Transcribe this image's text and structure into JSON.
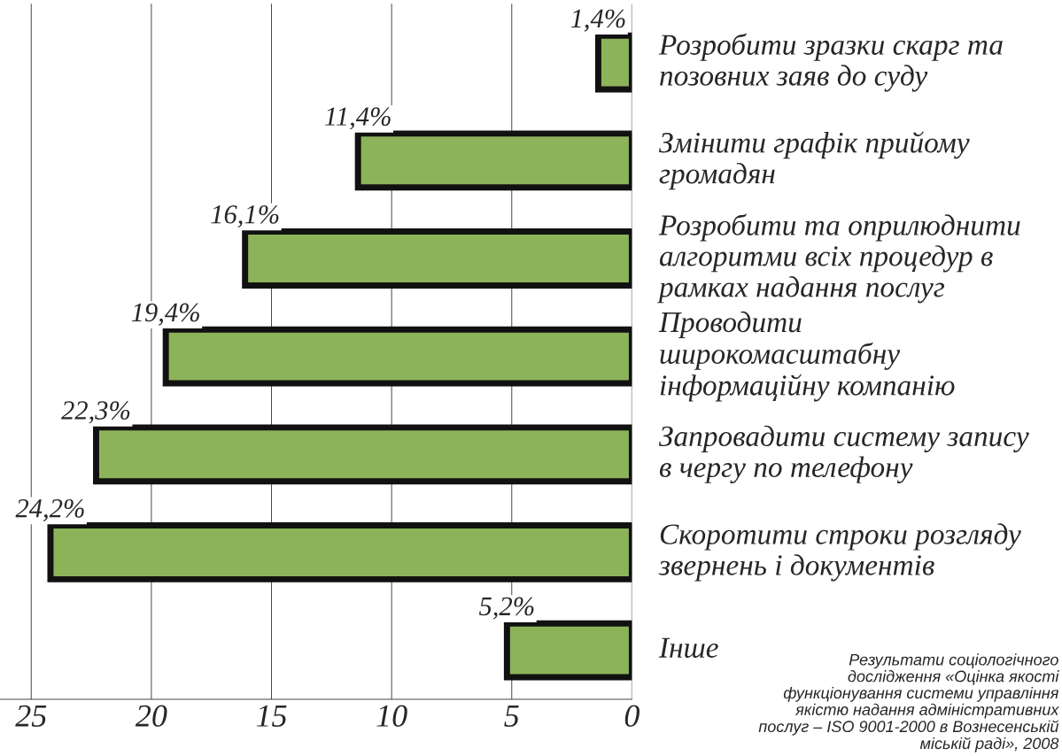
{
  "chart_data": {
    "type": "bar",
    "orientation": "horizontal",
    "categories": [
      "Розробити зразки скарг та\nпозовних заяв до суду",
      "Змінити графік прийому\nгромадян",
      "Розробити та оприлюднити\nалгоритми всіх процедур в\nрамках надання послуг",
      "Проводити\nширокомасштабну\nінформаційну компанію",
      "Запровадити систему запису\nв чергу по телефону",
      "Скоротити строки розгляду\nзвернень і документів",
      "Інше"
    ],
    "values": [
      1.4,
      11.4,
      16.1,
      19.4,
      22.3,
      24.2,
      5.2
    ],
    "value_labels": [
      "1,4%",
      "11,4%",
      "16,1%",
      "19,4%",
      "22,3%",
      "24,2%",
      "5,2%"
    ],
    "color": "#8db35a",
    "xlim": [
      26.3,
      0
    ],
    "xticks": [
      25,
      20,
      15,
      10,
      5,
      0
    ],
    "grid": "x",
    "legend": false,
    "annotations": [
      "Результати соціологічного\nдослідження «Оцінка якості\nфункціонування системи управління\nякістю надання адміністративних\nпослуг – ISO 9001-2000 в Вознесенській\nміській раді», 2008"
    ]
  }
}
